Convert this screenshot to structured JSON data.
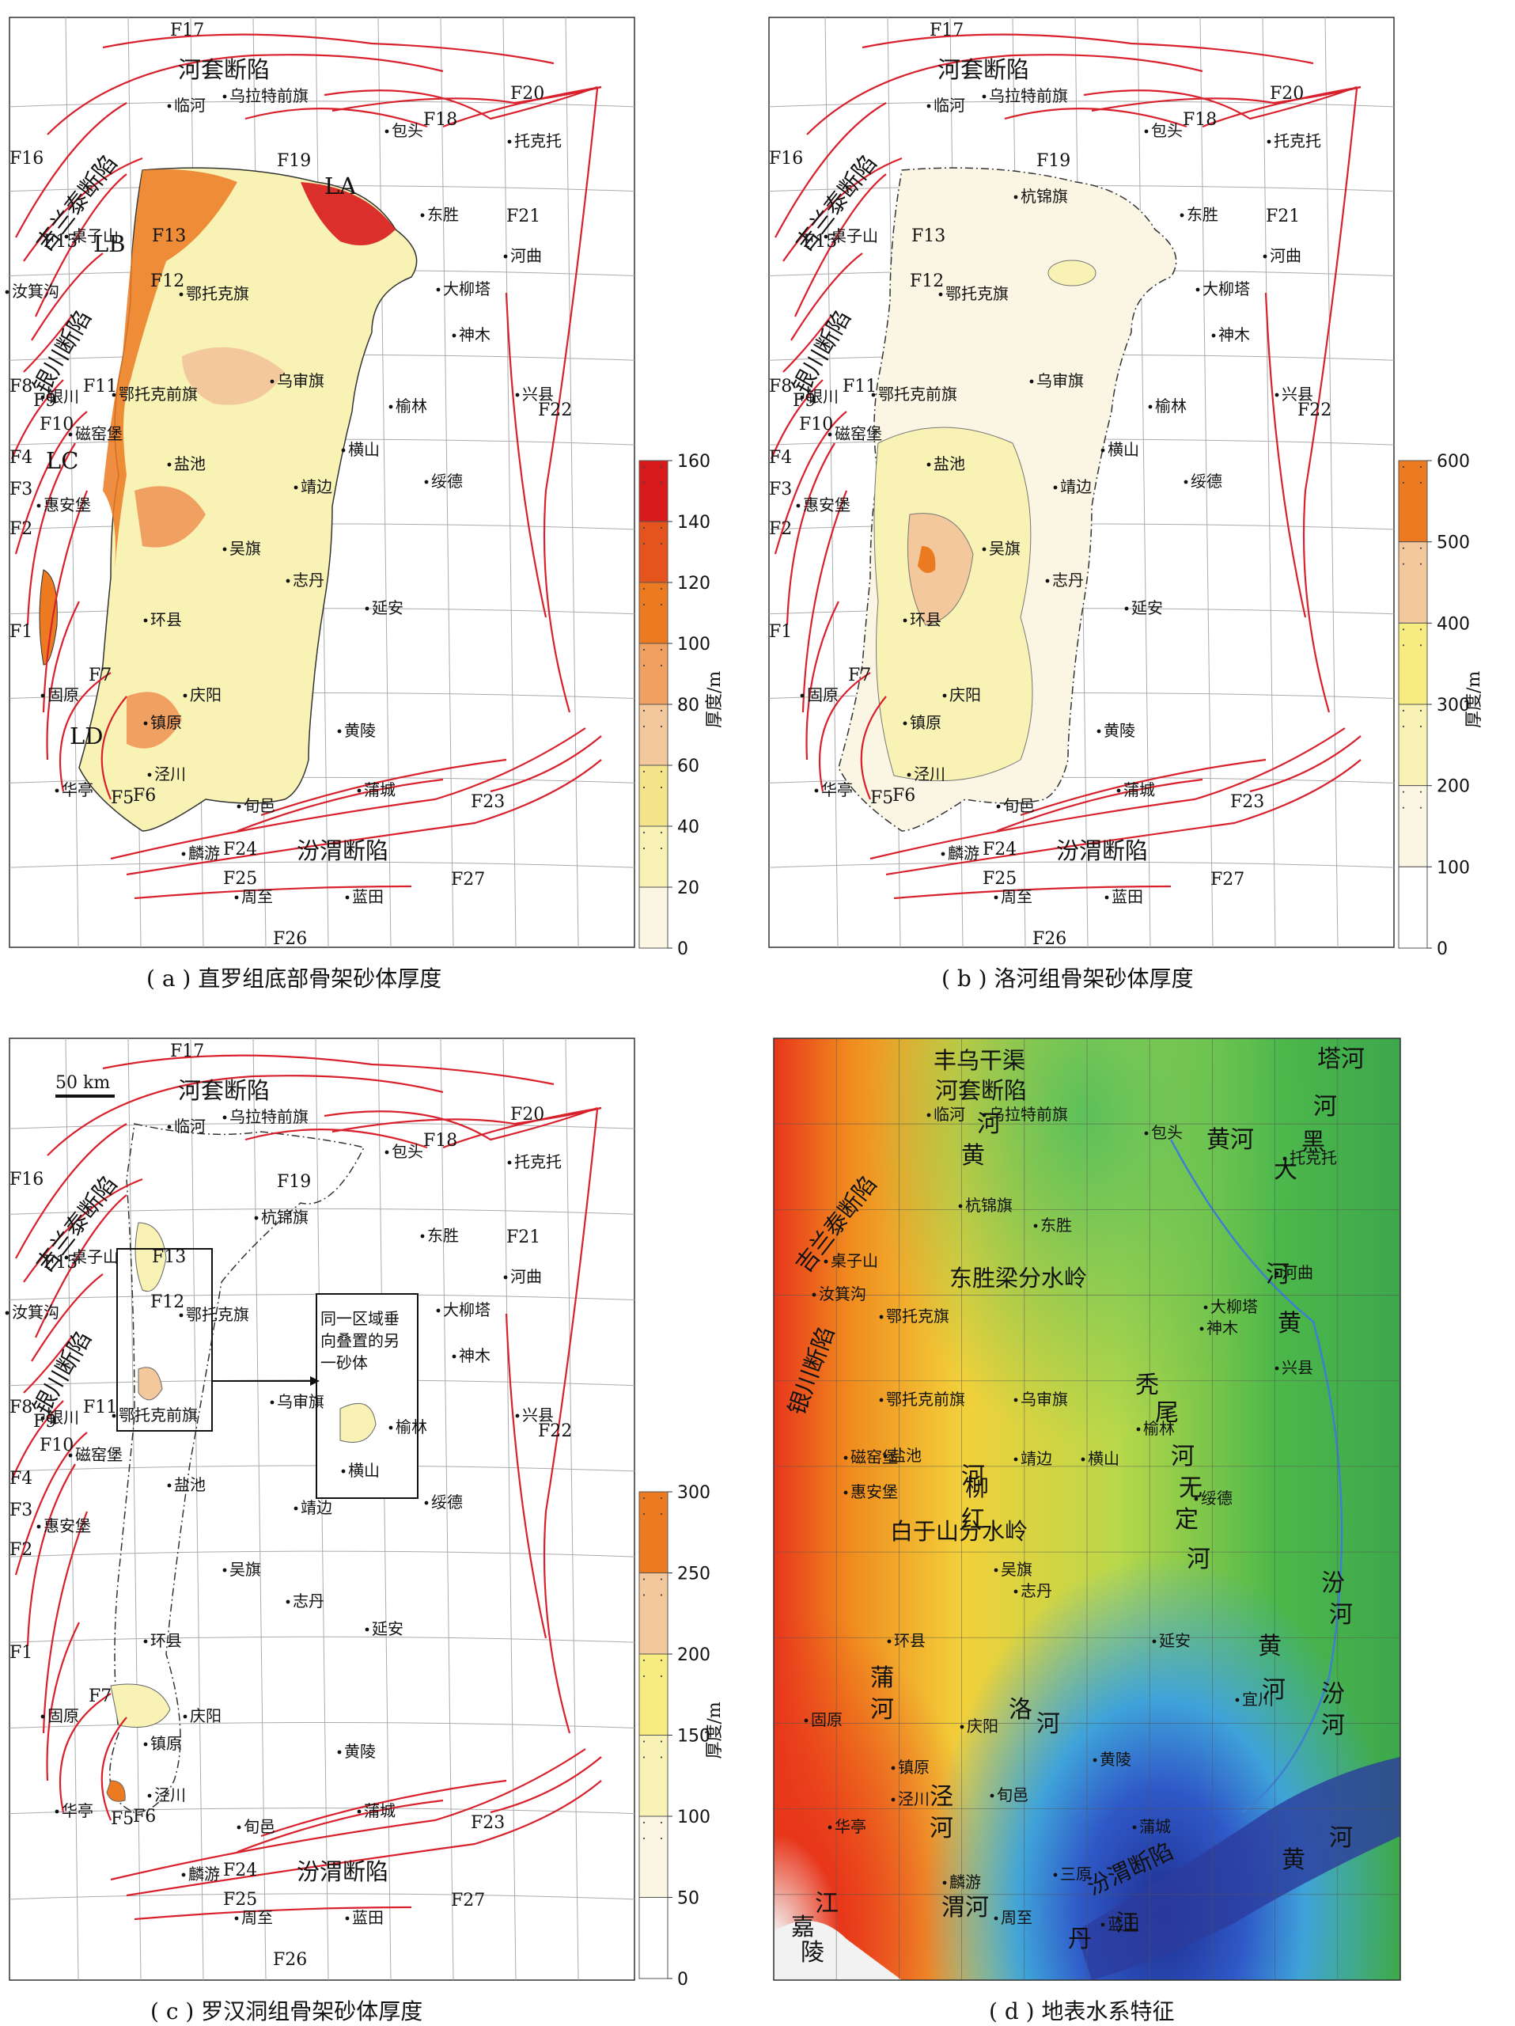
{
  "panels": {
    "a": {
      "caption": "( a ) 直罗组底部骨架砂体厚度",
      "legend": {
        "unit": "厚度/m",
        "ticks": [
          "160",
          "140",
          "120",
          "100",
          "80",
          "60",
          "40",
          "20",
          "0"
        ],
        "colors": [
          "#d7191c",
          "#e4541c",
          "#ec7a21",
          "#f0a060",
          "#f3c89c",
          "#f4e48a",
          "#f8f2b5",
          "#fbf6e3"
        ]
      },
      "labels": [
        "LA",
        "LB",
        "LC",
        "LD"
      ]
    },
    "b": {
      "caption": "( b ) 洛河组骨架砂体厚度",
      "legend": {
        "unit": "厚度/m",
        "ticks": [
          "600",
          "500",
          "400",
          "300",
          "200",
          "100",
          "0"
        ],
        "colors": [
          "#ec7a21",
          "#f3c89c",
          "#f7ec80",
          "#f8f2b5",
          "#fbf6e3",
          "#ffffff"
        ]
      }
    },
    "c": {
      "caption": "( c ) 罗汉洞组骨架砂体厚度",
      "legend": {
        "unit": "厚度/m",
        "ticks": [
          "300",
          "250",
          "200",
          "150",
          "100",
          "50",
          "0"
        ],
        "colors": [
          "#ec7a21",
          "#f3c89c",
          "#f7ec80",
          "#f8f2b5",
          "#fbf6e3",
          "#ffffff"
        ]
      },
      "scale": "50 km",
      "callout": [
        "同一区域垂",
        "向叠置的另",
        "一砂体"
      ]
    },
    "d": {
      "caption": "( d ) 地表水系特征",
      "regions": [
        "丰乌干渠",
        "东胜梁分水岭",
        "白于山分水岭"
      ],
      "rivers": [
        "塔河",
        "黑",
        "大",
        "河",
        "黄",
        "河",
        "黄河",
        "黄",
        "河",
        "秃",
        "尾",
        "河",
        "无",
        "定",
        "河",
        "汾",
        "河",
        "柳",
        "红",
        "河",
        "黄",
        "河",
        "汾",
        "河",
        "蒲",
        "河",
        "洛",
        "河",
        "泾",
        "河",
        "渭河",
        "丹",
        "江",
        "嘉",
        "陵",
        "江",
        "黄",
        "河"
      ]
    }
  },
  "structure_labels": {
    "hetao": "河套断陷",
    "jilantai": "吉兰泰断陷",
    "yinchuan": "银川断陷",
    "fenwei": "汾渭断陷"
  },
  "faults": [
    "F1",
    "F2",
    "F3",
    "F4",
    "F5",
    "F6",
    "F7",
    "F8",
    "F9",
    "F10",
    "F11",
    "F12",
    "F13",
    "F15",
    "F16",
    "F17",
    "F18",
    "F19",
    "F20",
    "F21",
    "F22",
    "F23",
    "F24",
    "F25",
    "F26",
    "F27"
  ],
  "cities": [
    "临河",
    "乌拉特前旗",
    "包头",
    "托克托",
    "东胜",
    "河曲",
    "大柳塔",
    "神木",
    "兴县",
    "鄂托克旗",
    "鄂托克前旗",
    "乌审旗",
    "榆林",
    "横山",
    "绥德",
    "盐池",
    "靖边",
    "吴旗",
    "志丹",
    "延安",
    "环县",
    "庆阳",
    "黄陵",
    "镇原",
    "泾川",
    "华亭",
    "旬邑",
    "蒲城",
    "麟游",
    "周至",
    "蓝田",
    "桌子山",
    "汝箕沟",
    "银川",
    "磁窑堡",
    "惠安堡",
    "固原",
    "杭锦旗",
    "宜川",
    "三原"
  ]
}
